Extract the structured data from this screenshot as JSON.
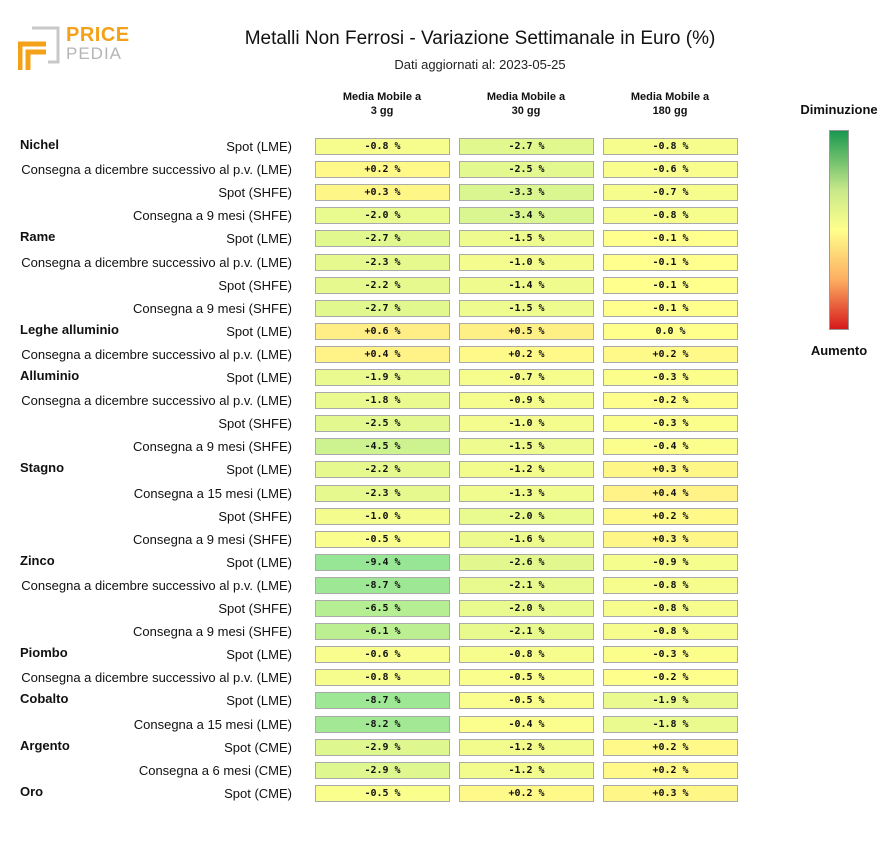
{
  "logo": {
    "word1": "PRICE",
    "word2": "PEDIA"
  },
  "chart_data": {
    "type": "table",
    "title": "Metalli Non Ferrosi - Variazione Settimanale in Euro (%)",
    "subtitle": "Dati aggiornati al: 2023-05-25",
    "columns": [
      "Media Mobile a\n3 gg",
      "Media Mobile a\n30 gg",
      "Media Mobile a\n180 gg"
    ],
    "legend": {
      "top": "Diminuzione",
      "bottom": "Aumento",
      "top_color": "#1a9850",
      "mid_color": "#ffff8c",
      "bottom_color": "#d7191c"
    },
    "groups": [
      {
        "name": "Nichel",
        "rows": [
          {
            "label": "Spot (LME)",
            "values": [
              "-0.8 %",
              "-2.7 %",
              "-0.8 %"
            ]
          },
          {
            "label": "Consegna a dicembre successivo al p.v. (LME)",
            "values": [
              "+0.2 %",
              "-2.5 %",
              "-0.6 %"
            ]
          },
          {
            "label": "Spot (SHFE)",
            "values": [
              "+0.3 %",
              "-3.3 %",
              "-0.7 %"
            ]
          },
          {
            "label": "Consegna a 9 mesi (SHFE)",
            "values": [
              "-2.0 %",
              "-3.4 %",
              "-0.8 %"
            ]
          }
        ]
      },
      {
        "name": "Rame",
        "rows": [
          {
            "label": "Spot (LME)",
            "values": [
              "-2.7 %",
              "-1.5 %",
              "-0.1 %"
            ]
          },
          {
            "label": "Consegna a dicembre successivo al p.v. (LME)",
            "values": [
              "-2.3 %",
              "-1.0 %",
              "-0.1 %"
            ]
          },
          {
            "label": "Spot (SHFE)",
            "values": [
              "-2.2 %",
              "-1.4 %",
              "-0.1 %"
            ]
          },
          {
            "label": "Consegna a 9 mesi (SHFE)",
            "values": [
              "-2.7 %",
              "-1.5 %",
              "-0.1 %"
            ]
          }
        ]
      },
      {
        "name": "Leghe alluminio",
        "rows": [
          {
            "label": "Spot (LME)",
            "values": [
              "+0.6 %",
              "+0.5 %",
              "0.0 %"
            ]
          },
          {
            "label": "Consegna a dicembre successivo al p.v. (LME)",
            "values": [
              "+0.4 %",
              "+0.2 %",
              "+0.2 %"
            ]
          }
        ]
      },
      {
        "name": "Alluminio",
        "rows": [
          {
            "label": "Spot (LME)",
            "values": [
              "-1.9 %",
              "-0.7 %",
              "-0.3 %"
            ]
          },
          {
            "label": "Consegna a dicembre successivo al p.v. (LME)",
            "values": [
              "-1.8 %",
              "-0.9 %",
              "-0.2 %"
            ]
          },
          {
            "label": "Spot (SHFE)",
            "values": [
              "-2.5 %",
              "-1.0 %",
              "-0.3 %"
            ]
          },
          {
            "label": "Consegna a 9 mesi (SHFE)",
            "values": [
              "-4.5 %",
              "-1.5 %",
              "-0.4 %"
            ]
          }
        ]
      },
      {
        "name": "Stagno",
        "rows": [
          {
            "label": "Spot (LME)",
            "values": [
              "-2.2 %",
              "-1.2 %",
              "+0.3 %"
            ]
          },
          {
            "label": "Consegna a 15 mesi (LME)",
            "values": [
              "-2.3 %",
              "-1.3 %",
              "+0.4 %"
            ]
          },
          {
            "label": "Spot (SHFE)",
            "values": [
              "-1.0 %",
              "-2.0 %",
              "+0.2 %"
            ]
          },
          {
            "label": "Consegna a 9 mesi (SHFE)",
            "values": [
              "-0.5 %",
              "-1.6 %",
              "+0.3 %"
            ]
          }
        ]
      },
      {
        "name": "Zinco",
        "rows": [
          {
            "label": "Spot (LME)",
            "values": [
              "-9.4 %",
              "-2.6 %",
              "-0.9 %"
            ]
          },
          {
            "label": "Consegna a dicembre successivo al p.v. (LME)",
            "values": [
              "-8.7 %",
              "-2.1 %",
              "-0.8 %"
            ]
          },
          {
            "label": "Spot (SHFE)",
            "values": [
              "-6.5 %",
              "-2.0 %",
              "-0.8 %"
            ]
          },
          {
            "label": "Consegna a 9 mesi (SHFE)",
            "values": [
              "-6.1 %",
              "-2.1 %",
              "-0.8 %"
            ]
          }
        ]
      },
      {
        "name": "Piombo",
        "rows": [
          {
            "label": "Spot (LME)",
            "values": [
              "-0.6 %",
              "-0.8 %",
              "-0.3 %"
            ]
          },
          {
            "label": "Consegna a dicembre successivo al p.v. (LME)",
            "values": [
              "-0.8 %",
              "-0.5 %",
              "-0.2 %"
            ]
          }
        ]
      },
      {
        "name": "Cobalto",
        "rows": [
          {
            "label": "Spot (LME)",
            "values": [
              "-8.7 %",
              "-0.5 %",
              "-1.9 %"
            ]
          },
          {
            "label": "Consegna a 15 mesi (LME)",
            "values": [
              "-8.2 %",
              "-0.4 %",
              "-1.8 %"
            ]
          }
        ]
      },
      {
        "name": "Argento",
        "rows": [
          {
            "label": "Spot (CME)",
            "values": [
              "-2.9 %",
              "-1.2 %",
              "+0.2 %"
            ]
          },
          {
            "label": "Consegna a 6 mesi (CME)",
            "values": [
              "-2.9 %",
              "-1.2 %",
              "+0.2 %"
            ]
          }
        ]
      },
      {
        "name": "Oro",
        "rows": [
          {
            "label": "Spot (CME)",
            "values": [
              "-0.5 %",
              "+0.2 %",
              "+0.3 %"
            ]
          }
        ]
      }
    ]
  }
}
